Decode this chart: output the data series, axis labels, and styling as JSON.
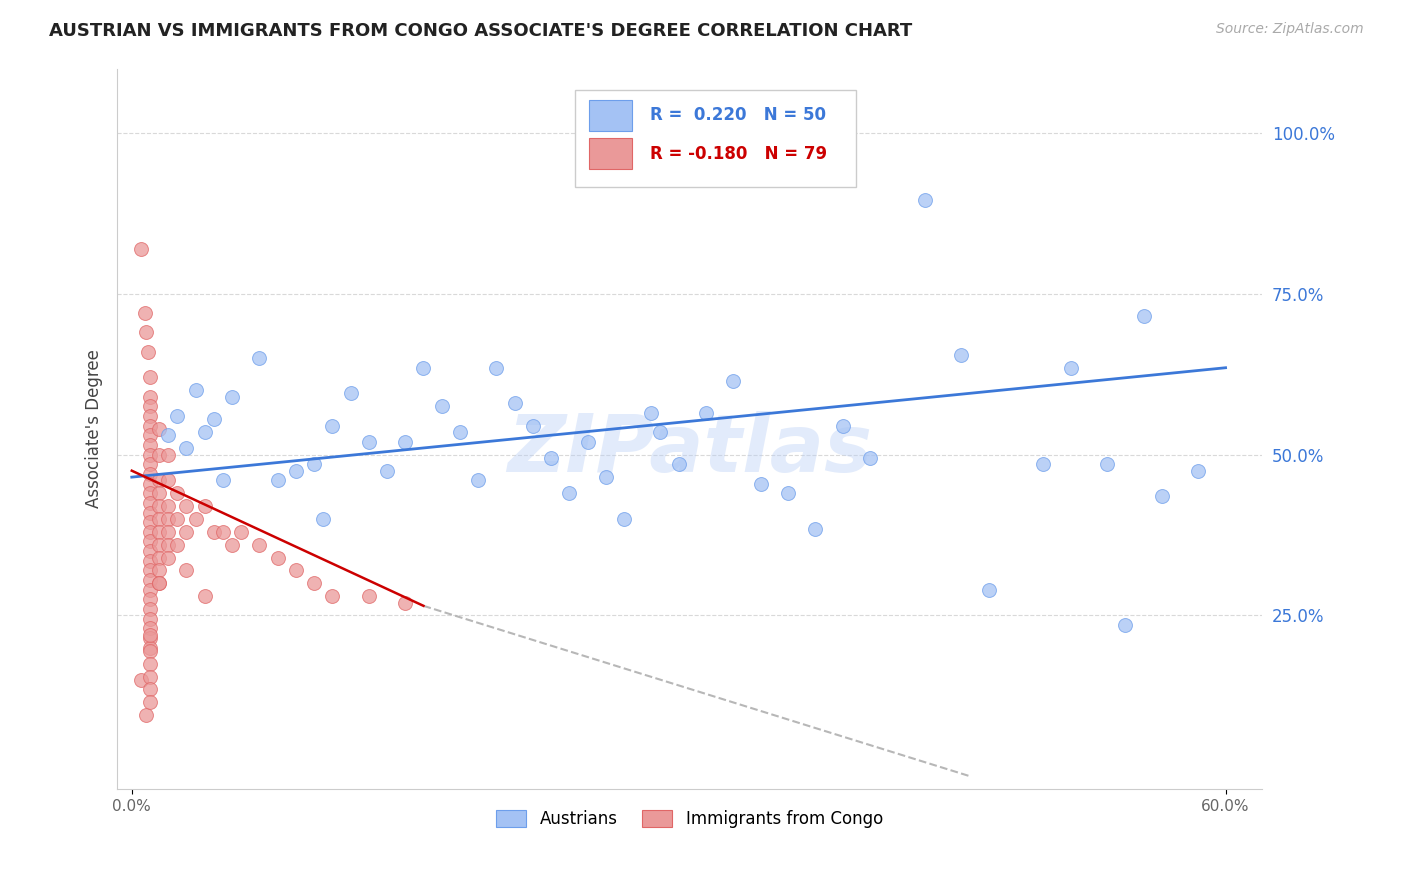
{
  "title": "AUSTRIAN VS IMMIGRANTS FROM CONGO ASSOCIATE'S DEGREE CORRELATION CHART",
  "source": "Source: ZipAtlas.com",
  "ylabel": "Associate's Degree",
  "ytick_labels": [
    "100.0%",
    "75.0%",
    "50.0%",
    "25.0%"
  ],
  "ytick_values": [
    1.0,
    0.75,
    0.5,
    0.25
  ],
  "xlim": [
    0.0,
    0.6
  ],
  "ylim": [
    0.0,
    1.05
  ],
  "blue_color": "#a4c2f4",
  "blue_edge_color": "#6d9eeb",
  "pink_color": "#ea9999",
  "pink_edge_color": "#e06666",
  "blue_line_color": "#3c78d8",
  "pink_line_color": "#cc0000",
  "pink_dash_color": "#b7b7b7",
  "legend_blue_R": "0.220",
  "legend_blue_N": "50",
  "legend_pink_R": "-0.180",
  "legend_pink_N": "79",
  "blue_scatter_x": [
    0.02,
    0.025,
    0.03,
    0.035,
    0.04,
    0.045,
    0.05,
    0.055,
    0.07,
    0.08,
    0.09,
    0.1,
    0.105,
    0.11,
    0.12,
    0.13,
    0.14,
    0.15,
    0.16,
    0.17,
    0.18,
    0.19,
    0.2,
    0.21,
    0.22,
    0.23,
    0.24,
    0.25,
    0.26,
    0.27,
    0.285,
    0.29,
    0.3,
    0.315,
    0.33,
    0.345,
    0.36,
    0.375,
    0.39,
    0.405,
    0.435,
    0.455,
    0.47,
    0.5,
    0.515,
    0.535,
    0.545,
    0.555,
    0.565,
    0.585
  ],
  "blue_scatter_y": [
    0.53,
    0.56,
    0.51,
    0.6,
    0.535,
    0.555,
    0.46,
    0.59,
    0.65,
    0.46,
    0.475,
    0.485,
    0.4,
    0.545,
    0.595,
    0.52,
    0.475,
    0.52,
    0.635,
    0.575,
    0.535,
    0.46,
    0.635,
    0.58,
    0.545,
    0.495,
    0.44,
    0.52,
    0.465,
    0.4,
    0.565,
    0.535,
    0.485,
    0.565,
    0.615,
    0.455,
    0.44,
    0.385,
    0.545,
    0.495,
    0.895,
    0.655,
    0.29,
    0.485,
    0.635,
    0.485,
    0.235,
    0.715,
    0.435,
    0.475
  ],
  "pink_scatter_x": [
    0.005,
    0.007,
    0.008,
    0.009,
    0.01,
    0.01,
    0.01,
    0.01,
    0.01,
    0.01,
    0.01,
    0.01,
    0.01,
    0.01,
    0.01,
    0.01,
    0.01,
    0.01,
    0.01,
    0.01,
    0.01,
    0.01,
    0.01,
    0.01,
    0.01,
    0.01,
    0.01,
    0.01,
    0.01,
    0.01,
    0.01,
    0.01,
    0.015,
    0.015,
    0.015,
    0.015,
    0.015,
    0.015,
    0.015,
    0.015,
    0.015,
    0.015,
    0.015,
    0.02,
    0.02,
    0.02,
    0.02,
    0.02,
    0.02,
    0.02,
    0.025,
    0.025,
    0.025,
    0.03,
    0.03,
    0.03,
    0.035,
    0.04,
    0.045,
    0.05,
    0.055,
    0.06,
    0.07,
    0.08,
    0.09,
    0.1,
    0.11,
    0.13,
    0.15,
    0.005,
    0.008,
    0.01,
    0.01,
    0.01,
    0.01,
    0.01,
    0.01,
    0.015,
    0.04
  ],
  "pink_scatter_y": [
    0.82,
    0.72,
    0.69,
    0.66,
    0.62,
    0.59,
    0.575,
    0.56,
    0.545,
    0.53,
    0.515,
    0.5,
    0.485,
    0.47,
    0.455,
    0.44,
    0.425,
    0.41,
    0.395,
    0.38,
    0.365,
    0.35,
    0.335,
    0.32,
    0.305,
    0.29,
    0.275,
    0.26,
    0.245,
    0.23,
    0.215,
    0.2,
    0.54,
    0.5,
    0.46,
    0.44,
    0.42,
    0.4,
    0.38,
    0.36,
    0.34,
    0.32,
    0.3,
    0.5,
    0.46,
    0.42,
    0.4,
    0.38,
    0.36,
    0.34,
    0.44,
    0.4,
    0.36,
    0.42,
    0.38,
    0.32,
    0.4,
    0.42,
    0.38,
    0.38,
    0.36,
    0.38,
    0.36,
    0.34,
    0.32,
    0.3,
    0.28,
    0.28,
    0.27,
    0.15,
    0.095,
    0.22,
    0.195,
    0.175,
    0.155,
    0.135,
    0.115,
    0.3,
    0.28
  ],
  "watermark": "ZIPatlas",
  "background_color": "#ffffff",
  "grid_color": "#d9d9d9"
}
